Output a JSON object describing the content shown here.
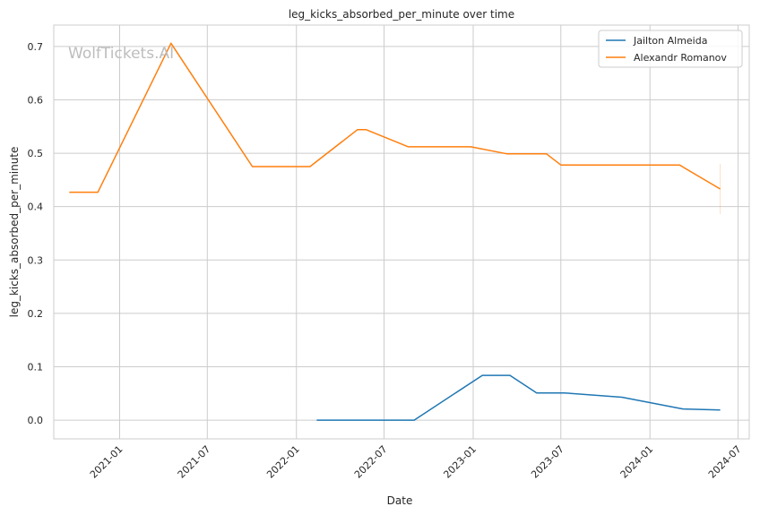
{
  "chart_data": {
    "type": "line",
    "title": "leg_kicks_absorbed_per_minute over time",
    "xlabel": "Date",
    "ylabel": "leg_kicks_absorbed_per_minute",
    "watermark": "WolfTickets.AI",
    "xlim": [
      "2020-08-18",
      "2024-07-24"
    ],
    "ylim": [
      -0.035,
      0.74
    ],
    "x_ticks": [
      "2021-01",
      "2021-07",
      "2022-01",
      "2022-07",
      "2023-01",
      "2023-07",
      "2024-01",
      "2024-07"
    ],
    "y_ticks": [
      0.0,
      0.1,
      0.2,
      0.3,
      0.4,
      0.5,
      0.6,
      0.7
    ],
    "y_tick_labels": [
      "0.0",
      "0.1",
      "0.2",
      "0.3",
      "0.4",
      "0.5",
      "0.6",
      "0.7"
    ],
    "grid": true,
    "legend_position": "top-right",
    "series": [
      {
        "name": "Jailton Almeida",
        "color": "#1f77b4",
        "points": [
          [
            "2022-02-12",
            0.0
          ],
          [
            "2022-09-01",
            0.0
          ],
          [
            "2023-01-20",
            0.084
          ],
          [
            "2023-03-18",
            0.084
          ],
          [
            "2023-05-12",
            0.051
          ],
          [
            "2023-07-08",
            0.051
          ],
          [
            "2023-11-04",
            0.043
          ],
          [
            "2024-03-09",
            0.021
          ],
          [
            "2024-05-25",
            0.019
          ]
        ]
      },
      {
        "name": "Alexandr Romanov",
        "color": "#ff7f0e",
        "points": [
          [
            "2020-09-19",
            0.427
          ],
          [
            "2020-11-17",
            0.427
          ],
          [
            "2021-04-17",
            0.706
          ],
          [
            "2021-10-02",
            0.475
          ],
          [
            "2022-01-29",
            0.475
          ],
          [
            "2022-05-07",
            0.544
          ],
          [
            "2022-05-25",
            0.544
          ],
          [
            "2022-08-20",
            0.512
          ],
          [
            "2022-12-27",
            0.512
          ],
          [
            "2023-03-11",
            0.499
          ],
          [
            "2023-06-01",
            0.499
          ],
          [
            "2023-07-01",
            0.478
          ],
          [
            "2024-03-02",
            0.478
          ],
          [
            "2024-05-25",
            0.433
          ]
        ]
      }
    ]
  }
}
